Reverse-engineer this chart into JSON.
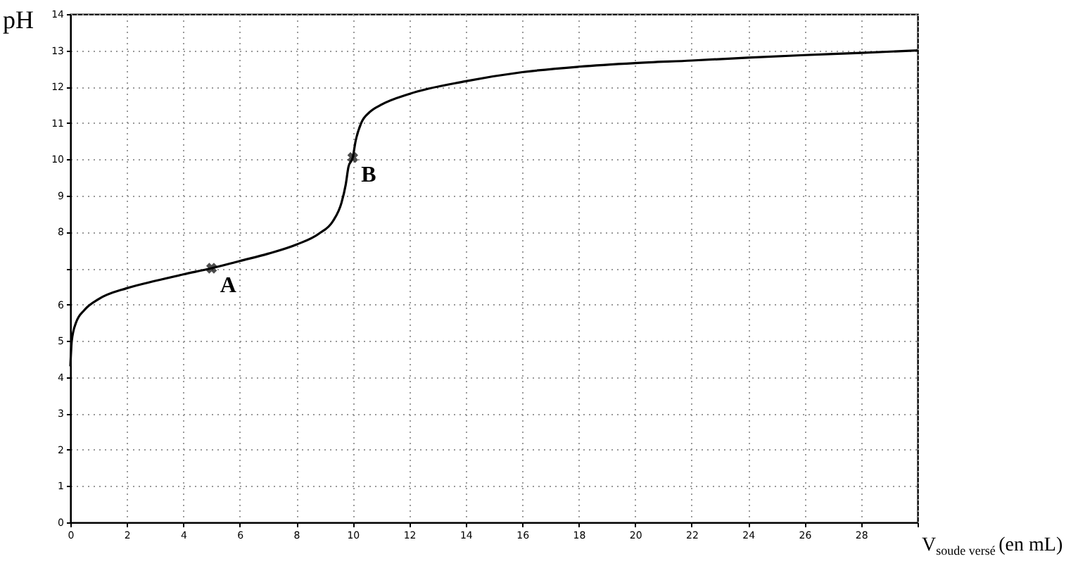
{
  "chart_data": {
    "type": "line",
    "xlabel": "V$_{soude versé}$ (en mL)",
    "ylabel": "pH",
    "xlim": [
      0,
      30
    ],
    "xticks": [
      0,
      2,
      4,
      6,
      8,
      10,
      12,
      14,
      16,
      18,
      20,
      22,
      24,
      26,
      28,
      {
        "value": 30,
        "label": null
      }
    ],
    "ylim": [
      0,
      14
    ],
    "yticks": [
      0,
      1,
      2,
      3,
      4,
      5,
      6,
      {
        "value": 7,
        "label": null
      },
      8,
      9,
      10,
      11,
      12,
      13,
      14
    ],
    "grid": true,
    "series": [
      {
        "color": "#000000",
        "line_style": "solid",
        "marker": "none",
        "x": [
          0,
          0.05,
          0.2,
          0.5,
          1,
          2,
          3,
          4,
          5,
          6,
          7,
          8,
          8.8,
          9.3,
          9.6,
          9.75,
          9.85,
          10,
          10.1,
          10.3,
          10.6,
          11,
          12,
          14,
          16,
          18,
          20,
          22,
          24,
          26,
          28,
          30
        ],
        "values": [
          4.3,
          5.0,
          5.5,
          5.85,
          6.15,
          6.45,
          6.65,
          6.83,
          7.0,
          7.2,
          7.4,
          7.65,
          7.95,
          8.3,
          8.8,
          9.3,
          9.8,
          10.05,
          10.5,
          11.0,
          11.3,
          11.5,
          11.8,
          12.15,
          12.4,
          12.55,
          12.65,
          12.72,
          12.8,
          12.87,
          12.93,
          13.0
        ]
      },
      {
        "type": "scatter",
        "color": "#000000",
        "marker": "cross",
        "x": [
          5,
          10
        ],
        "values": [
          7.0,
          10.05
        ]
      }
    ],
    "annotations": [
      {
        "text": "A",
        "x": 5,
        "y": 7.0
      },
      {
        "text": "B",
        "x": 10,
        "y": 10.05
      }
    ]
  }
}
